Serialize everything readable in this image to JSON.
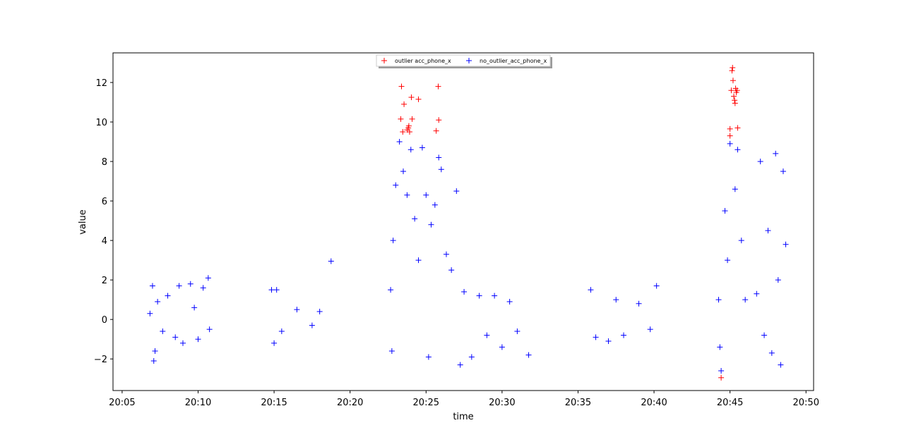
{
  "chart_data": {
    "type": "scatter",
    "title": "",
    "xlabel": "time",
    "ylabel": "value",
    "x_unit": "minutes",
    "xlim": [
      "20:05",
      "20:50"
    ],
    "ylim": [
      -3.6,
      13.5
    ],
    "x_ticks": [
      "20:05",
      "20:10",
      "20:15",
      "20:20",
      "20:25",
      "20:30",
      "20:35",
      "20:40",
      "20:45",
      "20:50"
    ],
    "y_ticks": [
      -2,
      0,
      2,
      4,
      6,
      8,
      10,
      12
    ],
    "y_tick_labels": [
      "−2",
      "0",
      "2",
      "4",
      "6",
      "8",
      "10",
      "12"
    ],
    "grid": false,
    "legend_position": "top-center",
    "marker": "+",
    "series": [
      {
        "name": "outlier acc_phone_x",
        "color": "#ff0000",
        "points": [
          [
            "20:23:23",
            11.8
          ],
          [
            "20:23:33",
            10.9
          ],
          [
            "20:23:45",
            9.6
          ],
          [
            "20:23:52",
            9.8
          ],
          [
            "20:23:55",
            9.5
          ],
          [
            "20:24:02",
            11.25
          ],
          [
            "20:24:05",
            10.15
          ],
          [
            "20:23:28",
            9.5
          ],
          [
            "20:24:30",
            11.15
          ],
          [
            "20:25:40",
            9.55
          ],
          [
            "20:25:50",
            10.1
          ],
          [
            "20:25:48",
            11.8
          ],
          [
            "20:23:20",
            10.15
          ],
          [
            "20:23:50",
            9.7
          ],
          [
            "20:44:25",
            -2.95
          ],
          [
            "20:45:00",
            9.65
          ],
          [
            "20:45:05",
            11.6
          ],
          [
            "20:45:08",
            12.6
          ],
          [
            "20:45:10",
            12.75
          ],
          [
            "20:45:12",
            12.1
          ],
          [
            "20:45:15",
            11.3
          ],
          [
            "20:45:18",
            11.1
          ],
          [
            "20:45:20",
            10.95
          ],
          [
            "20:45:22",
            11.7
          ],
          [
            "20:45:25",
            11.5
          ],
          [
            "20:45:28",
            11.6
          ],
          [
            "20:45:30",
            9.7
          ],
          [
            "20:45:00",
            9.3
          ]
        ]
      },
      {
        "name": "no_outlier_acc_phone_x",
        "color": "#0000ff",
        "points": [
          [
            "20:06:50",
            0.3
          ],
          [
            "20:07:00",
            1.7
          ],
          [
            "20:07:05",
            -2.1
          ],
          [
            "20:07:10",
            -1.6
          ],
          [
            "20:07:20",
            0.9
          ],
          [
            "20:07:40",
            -0.6
          ],
          [
            "20:08:00",
            1.2
          ],
          [
            "20:08:30",
            -0.9
          ],
          [
            "20:08:45",
            1.7
          ],
          [
            "20:09:00",
            -1.2
          ],
          [
            "20:09:30",
            1.8
          ],
          [
            "20:09:45",
            0.6
          ],
          [
            "20:10:00",
            -1.0
          ],
          [
            "20:10:20",
            1.6
          ],
          [
            "20:10:40",
            2.1
          ],
          [
            "20:10:45",
            -0.5
          ],
          [
            "20:14:50",
            1.5
          ],
          [
            "20:15:00",
            -1.2
          ],
          [
            "20:15:10",
            1.5
          ],
          [
            "20:15:30",
            -0.6
          ],
          [
            "20:16:30",
            0.5
          ],
          [
            "20:17:30",
            -0.3
          ],
          [
            "20:18:00",
            0.4
          ],
          [
            "20:18:45",
            2.95
          ],
          [
            "20:22:40",
            1.5
          ],
          [
            "20:22:45",
            -1.6
          ],
          [
            "20:22:50",
            4.0
          ],
          [
            "20:23:00",
            6.8
          ],
          [
            "20:23:15",
            9.0
          ],
          [
            "20:23:30",
            7.5
          ],
          [
            "20:23:45",
            6.3
          ],
          [
            "20:24:00",
            8.6
          ],
          [
            "20:24:15",
            5.1
          ],
          [
            "20:24:30",
            3.0
          ],
          [
            "20:24:45",
            8.7
          ],
          [
            "20:25:00",
            6.3
          ],
          [
            "20:25:10",
            -1.9
          ],
          [
            "20:25:20",
            4.8
          ],
          [
            "20:25:35",
            5.8
          ],
          [
            "20:25:50",
            8.2
          ],
          [
            "20:26:00",
            7.6
          ],
          [
            "20:26:20",
            3.3
          ],
          [
            "20:26:40",
            2.5
          ],
          [
            "20:27:00",
            6.5
          ],
          [
            "20:27:15",
            -2.3
          ],
          [
            "20:27:30",
            1.4
          ],
          [
            "20:28:00",
            -1.9
          ],
          [
            "20:28:30",
            1.2
          ],
          [
            "20:29:00",
            -0.8
          ],
          [
            "20:29:30",
            1.2
          ],
          [
            "20:30:00",
            -1.4
          ],
          [
            "20:30:30",
            0.9
          ],
          [
            "20:31:00",
            -0.6
          ],
          [
            "20:31:45",
            -1.8
          ],
          [
            "20:35:50",
            1.5
          ],
          [
            "20:36:10",
            -0.9
          ],
          [
            "20:37:00",
            -1.1
          ],
          [
            "20:37:30",
            1.0
          ],
          [
            "20:38:00",
            -0.8
          ],
          [
            "20:39:00",
            0.8
          ],
          [
            "20:39:45",
            -0.5
          ],
          [
            "20:40:10",
            1.7
          ],
          [
            "20:44:15",
            1.0
          ],
          [
            "20:44:20",
            -1.4
          ],
          [
            "20:44:25",
            -2.6
          ],
          [
            "20:44:40",
            5.5
          ],
          [
            "20:44:50",
            3.0
          ],
          [
            "20:45:00",
            8.9
          ],
          [
            "20:45:20",
            6.6
          ],
          [
            "20:45:30",
            8.6
          ],
          [
            "20:45:45",
            4.0
          ],
          [
            "20:46:00",
            1.0
          ],
          [
            "20:46:45",
            1.3
          ],
          [
            "20:47:00",
            8.0
          ],
          [
            "20:47:15",
            -0.8
          ],
          [
            "20:47:30",
            4.5
          ],
          [
            "20:47:45",
            -1.7
          ],
          [
            "20:48:00",
            8.4
          ],
          [
            "20:48:10",
            2.0
          ],
          [
            "20:48:20",
            -2.3
          ],
          [
            "20:48:30",
            7.5
          ],
          [
            "20:48:40",
            3.8
          ]
        ]
      }
    ]
  }
}
